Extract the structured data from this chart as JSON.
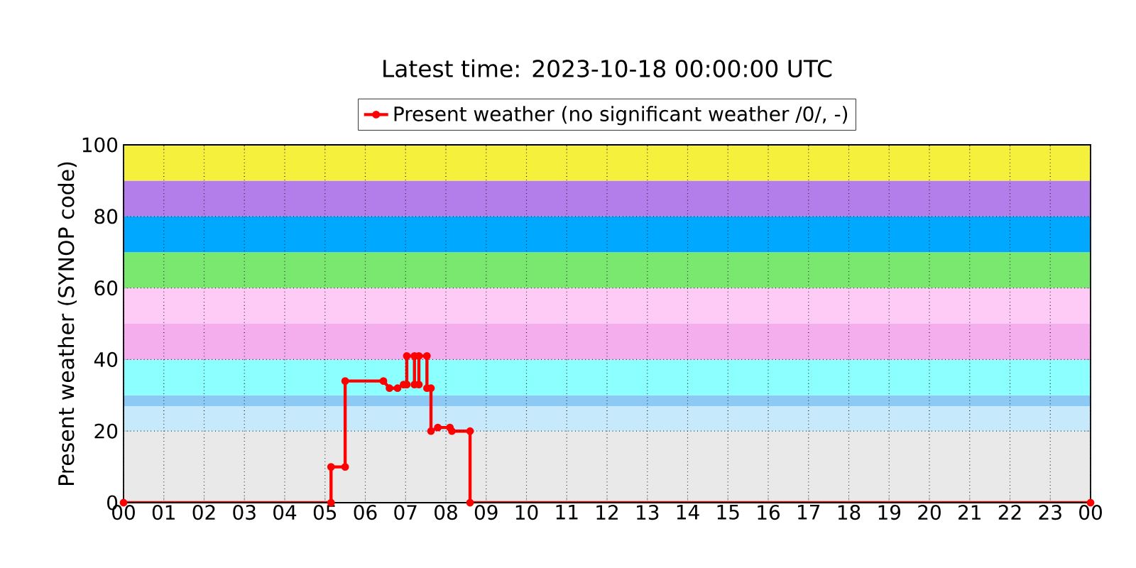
{
  "chart_data": {
    "type": "line",
    "title": "Latest time: 2023-10-18 00:00:00 UTC",
    "ylabel": "Present weather (SYNOP code)",
    "x": [
      0,
      5.15,
      5.15,
      5.5,
      5.5,
      6.45,
      6.6,
      6.8,
      6.95,
      7.03,
      7.03,
      7.22,
      7.22,
      7.33,
      7.33,
      7.53,
      7.53,
      7.63,
      7.63,
      7.8,
      8.1,
      8.15,
      8.6,
      8.6,
      24
    ],
    "series": [
      {
        "name": "Present weather (no significant weather /0/, -)",
        "color": "#ff0000",
        "values": [
          0,
          0,
          10,
          10,
          34,
          34,
          32,
          32,
          33,
          33,
          41,
          41,
          33,
          33,
          41,
          41,
          32,
          32,
          20,
          21,
          21,
          20,
          20,
          0,
          0
        ]
      }
    ],
    "xlim": [
      0,
      24
    ],
    "xticks": [
      {
        "value": 0,
        "label": "00"
      },
      {
        "value": 1,
        "label": "01"
      },
      {
        "value": 2,
        "label": "02"
      },
      {
        "value": 3,
        "label": "03"
      },
      {
        "value": 4,
        "label": "04"
      },
      {
        "value": 5,
        "label": "05"
      },
      {
        "value": 6,
        "label": "06"
      },
      {
        "value": 7,
        "label": "07"
      },
      {
        "value": 8,
        "label": "08"
      },
      {
        "value": 9,
        "label": "09"
      },
      {
        "value": 10,
        "label": "10"
      },
      {
        "value": 11,
        "label": "11"
      },
      {
        "value": 12,
        "label": "12"
      },
      {
        "value": 13,
        "label": "13"
      },
      {
        "value": 14,
        "label": "14"
      },
      {
        "value": 15,
        "label": "15"
      },
      {
        "value": 16,
        "label": "16"
      },
      {
        "value": 17,
        "label": "17"
      },
      {
        "value": 18,
        "label": "18"
      },
      {
        "value": 19,
        "label": "19"
      },
      {
        "value": 20,
        "label": "20"
      },
      {
        "value": 21,
        "label": "21"
      },
      {
        "value": 22,
        "label": "22"
      },
      {
        "value": 23,
        "label": "23"
      },
      {
        "value": 24,
        "label": "00"
      }
    ],
    "ylim": [
      0,
      100
    ],
    "yticks": [
      0,
      20,
      40,
      60,
      80,
      100
    ],
    "bands": [
      {
        "axis": "y",
        "from": 0,
        "to": 20,
        "color": "#e9e9e9"
      },
      {
        "axis": "y",
        "from": 20,
        "to": 27,
        "color": "#c6eafb"
      },
      {
        "axis": "y",
        "from": 27,
        "to": 30,
        "color": "#8ccaf5"
      },
      {
        "axis": "y",
        "from": 30,
        "to": 40,
        "color": "#8cffff"
      },
      {
        "axis": "y",
        "from": 40,
        "to": 50,
        "color": "#f5aeed"
      },
      {
        "axis": "y",
        "from": 50,
        "to": 60,
        "color": "#fdcbf5"
      },
      {
        "axis": "y",
        "from": 60,
        "to": 70,
        "color": "#7ae86f"
      },
      {
        "axis": "y",
        "from": 70,
        "to": 80,
        "color": "#00a8ff"
      },
      {
        "axis": "y",
        "from": 80,
        "to": 90,
        "color": "#b37eea"
      },
      {
        "axis": "y",
        "from": 90,
        "to": 100,
        "color": "#f5f03c"
      }
    ],
    "grid": true,
    "legend": "top",
    "marker": "circle",
    "line_style": "solid"
  }
}
